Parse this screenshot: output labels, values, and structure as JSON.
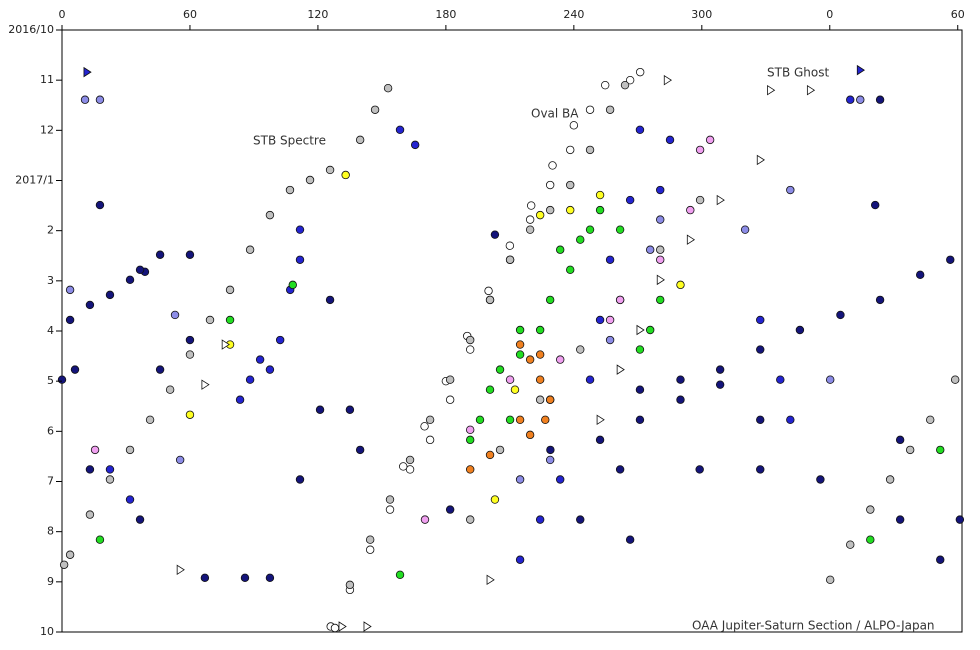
{
  "chart_data": {
    "type": "scatter",
    "x_axis_position": "top",
    "y_inverted": true,
    "xlim": [
      0,
      422
    ],
    "ylim": [
      0,
      12
    ],
    "xticks": [
      0,
      60,
      120,
      180,
      240,
      300,
      {
        "value": 360,
        "label": "0"
      },
      {
        "value": 420,
        "label": "60"
      }
    ],
    "yticks": [
      {
        "value": 0,
        "label": "2016/10"
      },
      {
        "value": 1,
        "label": "11"
      },
      {
        "value": 2,
        "label": "12"
      },
      {
        "value": 3,
        "label": "2017/1"
      },
      {
        "value": 4,
        "label": "2"
      },
      {
        "value": 5,
        "label": "3"
      },
      {
        "value": 6,
        "label": "4"
      },
      {
        "value": 7,
        "label": "5"
      },
      {
        "value": 8,
        "label": "6"
      },
      {
        "value": 9,
        "label": "7"
      },
      {
        "value": 10,
        "label": "8"
      },
      {
        "value": 11,
        "label": "9"
      },
      {
        "value": 12,
        "label": "10"
      }
    ],
    "annotations": [
      "STB Spectre",
      "Oval BA",
      "STB Ghost"
    ],
    "credit": "OAA Jupiter-Saturn Section / ALPO-Japan",
    "series": [
      {
        "color": "#ffffff",
        "marker": "circle",
        "x": [
          135,
          144.5,
          153.8,
          163.2,
          172.6,
          182,
          191.4,
          200.7,
          210.1,
          219.5,
          228.9,
          238.3,
          247.6,
          254.7,
          266.4,
          271.1,
          126,
          128,
          160,
          170,
          180,
          190,
          200,
          210,
          220,
          230,
          240
        ],
        "values": [
          11.16,
          10.36,
          9.56,
          8.76,
          8.17,
          7.37,
          6.37,
          5.38,
          4.58,
          3.78,
          3.09,
          2.39,
          1.59,
          1.1,
          1.0,
          0.84,
          11.89,
          11.92,
          8.7,
          7.9,
          7.0,
          6.1,
          5.2,
          4.3,
          3.5,
          2.7,
          1.9
        ]
      },
      {
        "color": "#c0c0c0",
        "marker": "circle",
        "x": [
          3.8,
          13.1,
          22.5,
          31.9,
          41.3,
          50.7,
          60,
          69.4,
          78.8,
          88.2,
          97.5,
          106.9,
          116.3,
          125.7,
          135,
          144.5,
          153.8,
          163.2,
          172.6,
          182,
          191.4,
          200.7,
          210.1,
          219.5,
          228.9,
          238.3,
          247.6,
          257,
          264,
          360.2,
          369.6,
          379,
          388.3,
          397.7,
          407.1,
          418.8,
          139.8,
          146.8,
          152.9,
          191.4,
          205.4,
          224.2,
          243,
          261.7,
          280.5,
          299.2,
          1
        ],
        "values": [
          10.46,
          9.66,
          8.96,
          8.37,
          7.77,
          7.17,
          6.47,
          5.78,
          5.18,
          4.38,
          3.69,
          3.19,
          2.99,
          2.79,
          11.06,
          10.16,
          9.36,
          8.57,
          7.77,
          6.97,
          6.18,
          5.38,
          4.58,
          3.98,
          3.59,
          3.09,
          2.39,
          1.59,
          1.1,
          10.96,
          10.26,
          9.56,
          8.96,
          8.37,
          7.77,
          6.97,
          2.19,
          1.59,
          1.16,
          9.76,
          8.37,
          7.37,
          6.37,
          5.38,
          4.38,
          3.39,
          10.66
        ]
      },
      {
        "color": "#14147a",
        "marker": "circle",
        "x": [
          3.8,
          13.1,
          22.5,
          31.9,
          38.9,
          0,
          6.1,
          46,
          60,
          271,
          290,
          308.6,
          327.4,
          346,
          365,
          383.6,
          402.4,
          416.5,
          252.3,
          271,
          290,
          308.6,
          327.4,
          17.8,
          60,
          203,
          229,
          182,
          261.7,
          299,
          393,
          421,
          383.6,
          381.3,
          67,
          85.8,
          97.5,
          46,
          36.6,
          125.7,
          121,
          135,
          139.8,
          111.6,
          36.6,
          13.1,
          266.4,
          243,
          327.4,
          355.6,
          393,
          411.8
        ],
        "values": [
          5.78,
          5.48,
          5.28,
          4.98,
          4.82,
          6.97,
          6.77,
          6.77,
          6.18,
          7.17,
          6.97,
          6.77,
          6.37,
          5.98,
          5.68,
          5.38,
          4.88,
          4.58,
          8.17,
          7.77,
          7.37,
          7.07,
          7.77,
          3.49,
          4.48,
          4.08,
          8.37,
          9.56,
          8.76,
          8.76,
          8.17,
          9.76,
          1.39,
          3.49,
          10.92,
          10.92,
          10.92,
          4.48,
          4.78,
          5.38,
          7.57,
          7.57,
          8.37,
          8.96,
          9.76,
          8.76,
          10.16,
          9.76,
          8.76,
          8.96,
          9.76,
          10.56
        ]
      },
      {
        "color": "#2424d0",
        "marker": "circle",
        "x": [
          88.2,
          92.9,
          102.3,
          107,
          111.6,
          111.6,
          83.5,
          97.5,
          271,
          266.4,
          257,
          252.3,
          247.6,
          280.5,
          285.1,
          224.2,
          214.8,
          233.6,
          341.5,
          336.8,
          327.4,
          22.5,
          31.9,
          158.5,
          165.6,
          369.6
        ],
        "values": [
          6.97,
          6.57,
          6.18,
          5.18,
          4.58,
          3.98,
          7.37,
          6.77,
          1.99,
          3.39,
          4.58,
          5.78,
          6.97,
          3.19,
          2.19,
          9.76,
          10.56,
          8.96,
          7.77,
          6.97,
          5.78,
          8.76,
          9.36,
          1.99,
          2.29,
          1.39
        ]
      },
      {
        "color": "#8c8ce6",
        "marker": "circle",
        "x": [
          10.8,
          17.8,
          374.3,
          53,
          55.4,
          228.9,
          228.9,
          214.8,
          280.5,
          275.8,
          320.3,
          360.2,
          341.5,
          257,
          3.8
        ],
        "values": [
          1.39,
          1.39,
          1.39,
          5.68,
          8.57,
          7.37,
          8.57,
          8.96,
          3.78,
          4.38,
          3.98,
          6.97,
          3.19,
          6.18,
          5.18
        ]
      },
      {
        "color": "#22dd22",
        "marker": "circle",
        "x": [
          247.6,
          243,
          238.3,
          228.9,
          224.2,
          214.8,
          205.4,
          200.7,
          196,
          191.4,
          252.3,
          261.7,
          233.6,
          280.5,
          275.8,
          271,
          78.8,
          108.2,
          17.8,
          379,
          158.5,
          411.8,
          214.8,
          210.1
        ],
        "values": [
          3.98,
          4.18,
          4.78,
          5.38,
          5.98,
          6.47,
          6.77,
          7.17,
          7.77,
          8.17,
          3.59,
          3.98,
          4.38,
          5.38,
          5.98,
          6.37,
          5.78,
          5.08,
          10.16,
          10.16,
          10.86,
          8.37,
          5.98,
          7.77
        ]
      },
      {
        "color": "#f0a0f0",
        "marker": "circle",
        "x": [
          299.2,
          303.9,
          261.7,
          257,
          280.5,
          294.6,
          210.1,
          191.4,
          170.2,
          15.5,
          233.6
        ],
        "values": [
          2.39,
          2.19,
          5.38,
          5.78,
          4.58,
          3.59,
          6.97,
          7.97,
          9.76,
          8.37,
          6.57
        ]
      },
      {
        "color": "#f08020",
        "marker": "circle",
        "x": [
          214.8,
          219.5,
          224.2,
          228.9,
          226.6,
          219.5,
          214.8,
          200.7,
          191.4,
          224.2
        ],
        "values": [
          6.27,
          6.57,
          6.97,
          7.37,
          7.77,
          8.07,
          7.77,
          8.47,
          8.76,
          6.47
        ]
      },
      {
        "color": "#ffff22",
        "marker": "circle",
        "x": [
          238.3,
          252.3,
          212.4,
          203,
          60,
          133,
          224.2,
          290,
          78.8
        ],
        "values": [
          3.59,
          3.29,
          7.17,
          9.36,
          7.67,
          2.89,
          3.69,
          5.08,
          6.27
        ]
      },
      {
        "color": "#ffffff",
        "marker": "triangle",
        "x": [
          332.2,
          350.9,
          327.4,
          308.6,
          294.6,
          280.5,
          271,
          261.7,
          252.3,
          131.3,
          143,
          283.8,
          200.7,
          55.4,
          67,
          76.5
        ],
        "values": [
          1.2,
          1.2,
          2.59,
          3.39,
          4.18,
          4.98,
          5.98,
          6.77,
          7.77,
          11.89,
          11.89,
          1.0,
          10.96,
          10.76,
          7.07,
          6.27
        ]
      },
      {
        "color": "#2424d0",
        "marker": "triangle",
        "x": [
          11.7,
          374.3
        ],
        "values": [
          0.84,
          0.8
        ]
      }
    ]
  }
}
